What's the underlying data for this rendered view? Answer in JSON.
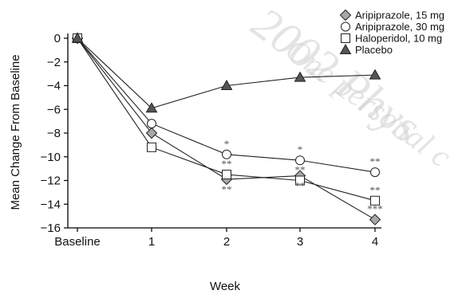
{
  "chart_data": {
    "type": "line",
    "title": "",
    "xlabel": "Week",
    "ylabel": "Mean Change From Baseline",
    "categories": [
      "Baseline",
      "1",
      "2",
      "3",
      "4"
    ],
    "ylim": [
      -16,
      0
    ],
    "yticks": [
      "0",
      "−2",
      "−4",
      "−6",
      "−8",
      "−10",
      "−12",
      "−14",
      "−16"
    ],
    "grid": false,
    "legend_position": "top-right",
    "series": [
      {
        "name": "Aripiprazole, 15 mg",
        "marker": "diamond-icon",
        "fill": "#a8a8a8",
        "values": [
          0,
          -8.0,
          -11.9,
          -11.6,
          -15.3
        ],
        "annotations": [
          "",
          "",
          "**",
          "**",
          "***"
        ]
      },
      {
        "name": "Aripiprazole, 30 mg",
        "marker": "circle-icon",
        "fill": "#ffffff",
        "values": [
          0,
          -7.2,
          -9.8,
          -10.3,
          -11.3
        ],
        "annotations": [
          "",
          "",
          "*",
          "*",
          "**"
        ]
      },
      {
        "name": "Haloperidol, 10 mg",
        "marker": "square-icon",
        "fill": "#ffffff",
        "values": [
          0,
          -9.2,
          -11.5,
          -12.0,
          -13.7
        ],
        "annotations": [
          "",
          "",
          "**",
          "**",
          "**"
        ]
      },
      {
        "name": "Placebo",
        "marker": "triangle-icon",
        "fill": "#555555",
        "values": [
          0,
          -5.9,
          -4.0,
          -3.3,
          -3.1
        ],
        "annotations": [
          "",
          "",
          "",
          "",
          ""
        ]
      }
    ],
    "watermark": [
      "2002 Phys",
      "One personal c"
    ]
  }
}
